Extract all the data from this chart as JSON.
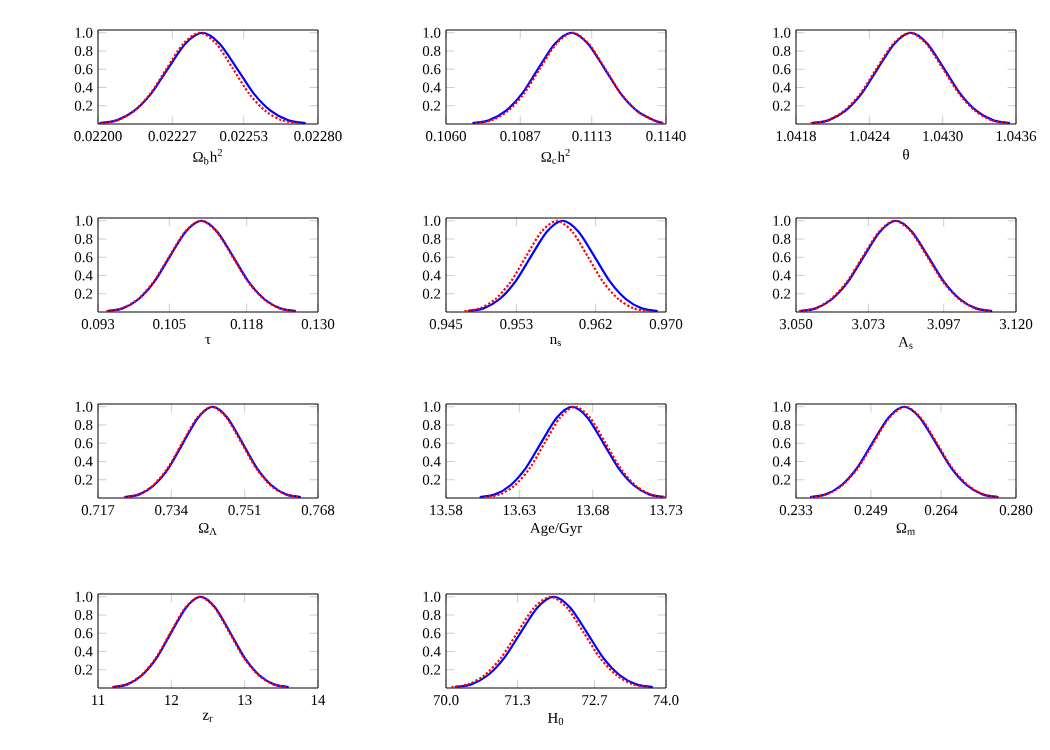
{
  "chart_data": [
    {
      "type": "line",
      "xlabel": "Ω$_{b}$h$^{2}$",
      "xlim": [
        0.022,
        0.0228
      ],
      "ylim": [
        0,
        1.03
      ],
      "xticks": [
        {
          "value": 0.022,
          "label": "0.02200"
        },
        {
          "value": 0.02227,
          "label": "0.02227"
        },
        {
          "value": 0.02253,
          "label": "0.02253"
        },
        {
          "value": 0.0228,
          "label": "0.02280"
        }
      ],
      "yticks": [
        {
          "value": 0.2,
          "label": "0.2"
        },
        {
          "value": 0.4,
          "label": "0.4"
        },
        {
          "value": 0.6,
          "label": "0.6"
        },
        {
          "value": 0.8,
          "label": "0.8"
        },
        {
          "value": 1.0,
          "label": "1.0"
        }
      ],
      "series": [
        {
          "color": "#0000ff",
          "line_style": "solid",
          "x": [
            0.022005,
            0.0220675,
            0.02213,
            0.0221925,
            0.022255,
            0.0223175,
            0.02238,
            0.0224425,
            0.022505,
            0.0225675,
            0.02263,
            0.0226925,
            0.022755
          ],
          "values": [
            0.01,
            0.04,
            0.14,
            0.33,
            0.61,
            0.88,
            1,
            0.88,
            0.61,
            0.33,
            0.14,
            0.04,
            0.01
          ]
        },
        {
          "color": "#ff0000",
          "line_style": "dotted",
          "x": [
            0.02201,
            0.02207,
            0.02213,
            0.02219,
            0.02225,
            0.02231,
            0.02237,
            0.02243,
            0.02249,
            0.02255,
            0.02261,
            0.02267,
            0.02273
          ],
          "values": [
            0.01,
            0.04,
            0.14,
            0.33,
            0.61,
            0.88,
            1,
            0.88,
            0.61,
            0.33,
            0.14,
            0.04,
            0.01
          ]
        }
      ]
    },
    {
      "type": "line",
      "xlabel": "Ω$_{c}$h$^{2}$",
      "xlim": [
        0.106,
        0.114
      ],
      "ylim": [
        0,
        1.03
      ],
      "xticks": [
        {
          "value": 0.106,
          "label": "0.1060"
        },
        {
          "value": 0.1087,
          "label": "0.1087"
        },
        {
          "value": 0.1113,
          "label": "0.1113"
        },
        {
          "value": 0.114,
          "label": "0.1140"
        }
      ],
      "yticks": [
        {
          "value": 0.2,
          "label": "0.2"
        },
        {
          "value": 0.4,
          "label": "0.4"
        },
        {
          "value": 0.6,
          "label": "0.6"
        },
        {
          "value": 0.8,
          "label": "0.8"
        },
        {
          "value": 1.0,
          "label": "1.0"
        }
      ],
      "series": [
        {
          "color": "#0000ff",
          "line_style": "solid",
          "x": [
            0.10696,
            0.10756,
            0.10816,
            0.10876,
            0.10936,
            0.10996,
            0.11056,
            0.11116,
            0.11176,
            0.11236,
            0.11296,
            0.11356,
            0.1139
          ],
          "values": [
            0.01,
            0.04,
            0.14,
            0.33,
            0.61,
            0.88,
            1,
            0.88,
            0.61,
            0.33,
            0.14,
            0.04,
            0.01
          ]
        },
        {
          "color": "#ff0000",
          "line_style": "dotted",
          "x": [
            0.10706,
            0.10765,
            0.10824,
            0.10883,
            0.10942,
            0.11001,
            0.1106,
            0.11119,
            0.11178,
            0.11237,
            0.11296,
            0.11355,
            0.1139
          ],
          "values": [
            0.01,
            0.04,
            0.14,
            0.33,
            0.61,
            0.88,
            1,
            0.88,
            0.61,
            0.33,
            0.14,
            0.04,
            0.01
          ]
        }
      ]
    },
    {
      "type": "line",
      "xlabel": "θ",
      "xlim": [
        1.0418,
        1.0436
      ],
      "ylim": [
        0,
        1.03
      ],
      "xticks": [
        {
          "value": 1.0418,
          "label": "1.0418"
        },
        {
          "value": 1.0424,
          "label": "1.0424"
        },
        {
          "value": 1.043,
          "label": "1.0430"
        },
        {
          "value": 1.0436,
          "label": "1.0436"
        }
      ],
      "yticks": [
        {
          "value": 0.2,
          "label": "0.2"
        },
        {
          "value": 0.4,
          "label": "0.4"
        },
        {
          "value": 0.6,
          "label": "0.6"
        },
        {
          "value": 0.8,
          "label": "0.8"
        },
        {
          "value": 1.0,
          "label": "1.0"
        }
      ],
      "series": [
        {
          "color": "#0000ff",
          "line_style": "solid",
          "x": [
            1.04193,
            1.042065,
            1.0422,
            1.042335,
            1.04247,
            1.042605,
            1.04274,
            1.042875,
            1.04301,
            1.043145,
            1.04328,
            1.043415,
            1.04355
          ],
          "values": [
            0.01,
            0.04,
            0.14,
            0.33,
            0.61,
            0.88,
            1,
            0.88,
            0.61,
            0.33,
            0.14,
            0.04,
            0.01
          ]
        },
        {
          "color": "#ff0000",
          "line_style": "dotted",
          "x": [
            1.04192,
            1.042055,
            1.04219,
            1.042325,
            1.04246,
            1.042595,
            1.04273,
            1.042865,
            1.043,
            1.043135,
            1.04327,
            1.043405,
            1.04354
          ],
          "values": [
            0.01,
            0.04,
            0.14,
            0.33,
            0.61,
            0.88,
            1,
            0.88,
            0.61,
            0.33,
            0.14,
            0.04,
            0.01
          ]
        }
      ]
    },
    {
      "type": "line",
      "xlabel": "τ",
      "xlim": [
        0.093,
        0.13
      ],
      "ylim": [
        0,
        1.03
      ],
      "xticks": [
        {
          "value": 0.093,
          "label": "0.093"
        },
        {
          "value": 0.105,
          "label": "0.105"
        },
        {
          "value": 0.118,
          "label": "0.118"
        },
        {
          "value": 0.13,
          "label": "0.130"
        }
      ],
      "yticks": [
        {
          "value": 0.2,
          "label": "0.2"
        },
        {
          "value": 0.4,
          "label": "0.4"
        },
        {
          "value": 0.6,
          "label": "0.6"
        },
        {
          "value": 0.8,
          "label": "0.8"
        },
        {
          "value": 1.0,
          "label": "1.0"
        }
      ],
      "series": [
        {
          "color": "#0000ff",
          "line_style": "solid",
          "x": [
            0.0945,
            0.09715,
            0.0998,
            0.10245,
            0.1051,
            0.10775,
            0.1104,
            0.11305,
            0.1157,
            0.11835,
            0.121,
            0.12365,
            0.1263
          ],
          "values": [
            0.01,
            0.04,
            0.14,
            0.33,
            0.61,
            0.88,
            1,
            0.88,
            0.61,
            0.33,
            0.14,
            0.04,
            0.01
          ]
        },
        {
          "color": "#ff0000",
          "line_style": "dotted",
          "x": [
            0.0944,
            0.09705,
            0.0997,
            0.10235,
            0.105,
            0.10765,
            0.1103,
            0.11295,
            0.1156,
            0.11825,
            0.1209,
            0.12355,
            0.1262
          ],
          "values": [
            0.01,
            0.04,
            0.14,
            0.33,
            0.61,
            0.88,
            1,
            0.88,
            0.61,
            0.33,
            0.14,
            0.04,
            0.01
          ]
        }
      ]
    },
    {
      "type": "line",
      "xlabel": "n$_{s}$",
      "xlim": [
        0.945,
        0.97
      ],
      "ylim": [
        0,
        1.03
      ],
      "xticks": [
        {
          "value": 0.945,
          "label": "0.945"
        },
        {
          "value": 0.953,
          "label": "0.953"
        },
        {
          "value": 0.962,
          "label": "0.962"
        },
        {
          "value": 0.97,
          "label": "0.970"
        }
      ],
      "yticks": [
        {
          "value": 0.2,
          "label": "0.2"
        },
        {
          "value": 0.4,
          "label": "0.4"
        },
        {
          "value": 0.6,
          "label": "0.6"
        },
        {
          "value": 0.8,
          "label": "0.8"
        },
        {
          "value": 1.0,
          "label": "1.0"
        }
      ],
      "series": [
        {
          "color": "#0000ff",
          "line_style": "solid",
          "x": [
            0.94746,
            0.94926,
            0.95106,
            0.95286,
            0.95466,
            0.95646,
            0.95826,
            0.96006,
            0.96186,
            0.96366,
            0.96546,
            0.96726,
            0.96906
          ],
          "values": [
            0.01,
            0.04,
            0.14,
            0.33,
            0.61,
            0.88,
            1,
            0.88,
            0.61,
            0.33,
            0.14,
            0.04,
            0.01
          ]
        },
        {
          "color": "#ff0000",
          "line_style": "dotted",
          "x": [
            0.9471,
            0.94885,
            0.9506,
            0.95235,
            0.9541,
            0.95585,
            0.9576,
            0.95935,
            0.9611,
            0.96285,
            0.9646,
            0.96635,
            0.9681
          ],
          "values": [
            0.01,
            0.04,
            0.14,
            0.33,
            0.61,
            0.88,
            1,
            0.88,
            0.61,
            0.33,
            0.14,
            0.04,
            0.01
          ]
        }
      ]
    },
    {
      "type": "line",
      "xlabel": "A$_{s}$",
      "xlim": [
        3.05,
        3.12
      ],
      "ylim": [
        0,
        1.03
      ],
      "xticks": [
        {
          "value": 3.05,
          "label": "3.050"
        },
        {
          "value": 3.073,
          "label": "3.073"
        },
        {
          "value": 3.097,
          "label": "3.097"
        },
        {
          "value": 3.12,
          "label": "3.120"
        }
      ],
      "yticks": [
        {
          "value": 0.2,
          "label": "0.2"
        },
        {
          "value": 0.4,
          "label": "0.4"
        },
        {
          "value": 0.6,
          "label": "0.6"
        },
        {
          "value": 0.8,
          "label": "0.8"
        },
        {
          "value": 1.0,
          "label": "1.0"
        }
      ],
      "series": [
        {
          "color": "#0000ff",
          "line_style": "solid",
          "x": [
            3.0512,
            3.0563,
            3.0614,
            3.0665,
            3.0716,
            3.0767,
            3.0818,
            3.0869,
            3.092,
            3.0971,
            3.1022,
            3.1073,
            3.1124
          ],
          "values": [
            0.01,
            0.04,
            0.14,
            0.33,
            0.61,
            0.88,
            1,
            0.88,
            0.61,
            0.33,
            0.14,
            0.04,
            0.01
          ]
        },
        {
          "color": "#ff0000",
          "line_style": "dotted",
          "x": [
            3.0509,
            3.056,
            3.0611,
            3.0662,
            3.0713,
            3.0764,
            3.0815,
            3.0866,
            3.0917,
            3.0968,
            3.1019,
            3.107,
            3.1121
          ],
          "values": [
            0.01,
            0.04,
            0.14,
            0.33,
            0.61,
            0.88,
            1,
            0.88,
            0.61,
            0.33,
            0.14,
            0.04,
            0.01
          ]
        }
      ]
    },
    {
      "type": "line",
      "xlabel": "Ω$_{Λ}$",
      "xlim": [
        0.717,
        0.768
      ],
      "ylim": [
        0,
        1.03
      ],
      "xticks": [
        {
          "value": 0.717,
          "label": "0.717"
        },
        {
          "value": 0.734,
          "label": "0.734"
        },
        {
          "value": 0.751,
          "label": "0.751"
        },
        {
          "value": 0.768,
          "label": "0.768"
        }
      ],
      "yticks": [
        {
          "value": 0.2,
          "label": "0.2"
        },
        {
          "value": 0.4,
          "label": "0.4"
        },
        {
          "value": 0.6,
          "label": "0.6"
        },
        {
          "value": 0.8,
          "label": "0.8"
        },
        {
          "value": 1.0,
          "label": "1.0"
        }
      ],
      "series": [
        {
          "color": "#0000ff",
          "line_style": "solid",
          "x": [
            0.7232,
            0.7266,
            0.73,
            0.7334,
            0.7368,
            0.7402,
            0.7436,
            0.747,
            0.7504,
            0.7538,
            0.7572,
            0.7606,
            0.764
          ],
          "values": [
            0.01,
            0.04,
            0.14,
            0.33,
            0.61,
            0.88,
            1,
            0.88,
            0.61,
            0.33,
            0.14,
            0.04,
            0.01
          ]
        },
        {
          "color": "#ff0000",
          "line_style": "dotted",
          "x": [
            0.723,
            0.7264,
            0.7298,
            0.7332,
            0.7366,
            0.74,
            0.7434,
            0.7468,
            0.7502,
            0.7536,
            0.757,
            0.7604,
            0.7638
          ],
          "values": [
            0.01,
            0.04,
            0.14,
            0.33,
            0.61,
            0.88,
            1,
            0.88,
            0.61,
            0.33,
            0.14,
            0.04,
            0.01
          ]
        }
      ]
    },
    {
      "type": "line",
      "xlabel": "Age/Gyr",
      "xlim": [
        13.58,
        13.73
      ],
      "ylim": [
        0,
        1.03
      ],
      "xticks": [
        {
          "value": 13.58,
          "label": "13.58"
        },
        {
          "value": 13.63,
          "label": "13.63"
        },
        {
          "value": 13.68,
          "label": "13.68"
        },
        {
          "value": 13.73,
          "label": "13.73"
        }
      ],
      "yticks": [
        {
          "value": 0.2,
          "label": "0.2"
        },
        {
          "value": 0.4,
          "label": "0.4"
        },
        {
          "value": 0.6,
          "label": "0.6"
        },
        {
          "value": 0.8,
          "label": "0.8"
        },
        {
          "value": 1.0,
          "label": "1.0"
        }
      ],
      "series": [
        {
          "color": "#0000ff",
          "line_style": "solid",
          "x": [
            13.603,
            13.6135,
            13.624,
            13.6345,
            13.645,
            13.6555,
            13.666,
            13.6765,
            13.687,
            13.6975,
            13.708,
            13.7185,
            13.729
          ],
          "values": [
            0.01,
            0.04,
            0.14,
            0.33,
            0.61,
            0.88,
            1,
            0.88,
            0.61,
            0.33,
            0.14,
            0.04,
            0.01
          ]
        },
        {
          "color": "#ff0000",
          "line_style": "dotted",
          "x": [
            13.6065,
            13.61675,
            13.627,
            13.63725,
            13.6475,
            13.65775,
            13.668,
            13.67825,
            13.6885,
            13.69875,
            13.709,
            13.71925,
            13.7295
          ],
          "values": [
            0.01,
            0.04,
            0.14,
            0.33,
            0.61,
            0.88,
            1,
            0.88,
            0.61,
            0.33,
            0.14,
            0.04,
            0.01
          ]
        }
      ]
    },
    {
      "type": "line",
      "xlabel": "Ω$_{m}$",
      "xlim": [
        0.233,
        0.28
      ],
      "ylim": [
        0,
        1.03
      ],
      "xticks": [
        {
          "value": 0.233,
          "label": "0.233"
        },
        {
          "value": 0.249,
          "label": "0.249"
        },
        {
          "value": 0.264,
          "label": "0.264"
        },
        {
          "value": 0.28,
          "label": "0.280"
        }
      ],
      "yticks": [
        {
          "value": 0.2,
          "label": "0.2"
        },
        {
          "value": 0.4,
          "label": "0.4"
        },
        {
          "value": 0.6,
          "label": "0.6"
        },
        {
          "value": 0.8,
          "label": "0.8"
        },
        {
          "value": 1.0,
          "label": "1.0"
        }
      ],
      "series": [
        {
          "color": "#0000ff",
          "line_style": "solid",
          "x": [
            0.236,
            0.23935,
            0.2427,
            0.24605,
            0.2494,
            0.25275,
            0.2561,
            0.25945,
            0.2628,
            0.26615,
            0.2695,
            0.27285,
            0.2762
          ],
          "values": [
            0.01,
            0.04,
            0.14,
            0.33,
            0.61,
            0.88,
            1,
            0.88,
            0.61,
            0.33,
            0.14,
            0.04,
            0.01
          ]
        },
        {
          "color": "#ff0000",
          "line_style": "dotted",
          "x": [
            0.2362,
            0.23955,
            0.2429,
            0.24625,
            0.2496,
            0.25295,
            0.2563,
            0.25965,
            0.263,
            0.26635,
            0.2697,
            0.27305,
            0.2764
          ],
          "values": [
            0.01,
            0.04,
            0.14,
            0.33,
            0.61,
            0.88,
            1,
            0.88,
            0.61,
            0.33,
            0.14,
            0.04,
            0.01
          ]
        }
      ]
    },
    {
      "type": "line",
      "xlabel": "z$_{r}$",
      "xlim": [
        11,
        14
      ],
      "ylim": [
        0,
        1.03
      ],
      "xticks": [
        {
          "value": 11,
          "label": "11"
        },
        {
          "value": 12,
          "label": "12"
        },
        {
          "value": 13,
          "label": "13"
        },
        {
          "value": 14,
          "label": "14"
        }
      ],
      "yticks": [
        {
          "value": 0.2,
          "label": "0.2"
        },
        {
          "value": 0.4,
          "label": "0.4"
        },
        {
          "value": 0.6,
          "label": "0.6"
        },
        {
          "value": 0.8,
          "label": "0.8"
        },
        {
          "value": 1.0,
          "label": "1.0"
        }
      ],
      "series": [
        {
          "color": "#0000ff",
          "line_style": "solid",
          "x": [
            11.2,
            11.4,
            11.6,
            11.8,
            12.0,
            12.2,
            12.4,
            12.6,
            12.8,
            13.0,
            13.2,
            13.4,
            13.6
          ],
          "values": [
            0.01,
            0.04,
            0.14,
            0.33,
            0.61,
            0.88,
            1,
            0.88,
            0.61,
            0.33,
            0.14,
            0.04,
            0.01
          ]
        },
        {
          "color": "#ff0000",
          "line_style": "dotted",
          "x": [
            11.19,
            11.39,
            11.59,
            11.79,
            11.99,
            12.19,
            12.39,
            12.59,
            12.79,
            12.99,
            13.19,
            13.39,
            13.59
          ],
          "values": [
            0.01,
            0.04,
            0.14,
            0.33,
            0.61,
            0.88,
            1,
            0.88,
            0.61,
            0.33,
            0.14,
            0.04,
            0.01
          ]
        }
      ]
    },
    {
      "type": "line",
      "xlabel": "H$_{0}$",
      "xlim": [
        70,
        74
      ],
      "ylim": [
        0,
        1.03
      ],
      "xticks": [
        {
          "value": 70,
          "label": "70.0"
        },
        {
          "value": 71.3,
          "label": "71.3"
        },
        {
          "value": 72.7,
          "label": "72.7"
        },
        {
          "value": 74,
          "label": "74.0"
        }
      ],
      "yticks": [
        {
          "value": 0.2,
          "label": "0.2"
        },
        {
          "value": 0.4,
          "label": "0.4"
        },
        {
          "value": 0.6,
          "label": "0.6"
        },
        {
          "value": 0.8,
          "label": "0.8"
        },
        {
          "value": 1.0,
          "label": "1.0"
        }
      ],
      "series": [
        {
          "color": "#0000ff",
          "line_style": "solid",
          "x": [
            70.16,
            70.46,
            70.76,
            71.06,
            71.36,
            71.66,
            71.96,
            72.26,
            72.56,
            72.86,
            73.16,
            73.46,
            73.76
          ],
          "values": [
            0.01,
            0.04,
            0.14,
            0.33,
            0.61,
            0.88,
            1,
            0.88,
            0.61,
            0.33,
            0.14,
            0.04,
            0.01
          ]
        },
        {
          "color": "#ff0000",
          "line_style": "dotted",
          "x": [
            70.1,
            70.4,
            70.7,
            71.0,
            71.3,
            71.6,
            71.9,
            72.2,
            72.5,
            72.8,
            73.1,
            73.4,
            73.7
          ],
          "values": [
            0.01,
            0.04,
            0.14,
            0.33,
            0.61,
            0.88,
            1,
            0.88,
            0.61,
            0.33,
            0.14,
            0.04,
            0.01
          ]
        }
      ]
    }
  ]
}
